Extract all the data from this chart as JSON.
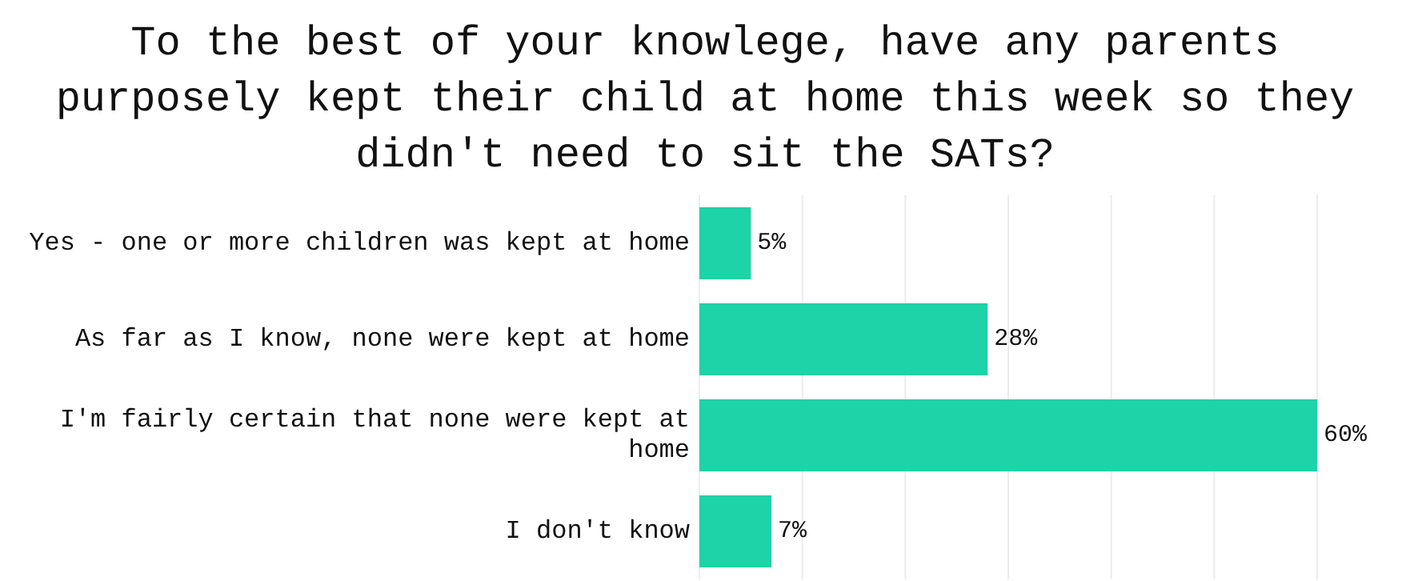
{
  "chart_data": {
    "type": "bar",
    "orientation": "horizontal",
    "title": "To the best of your knowlege, have any parents purposely kept their child at home this week so they didn't need to sit the SATs?",
    "categories": [
      "Yes - one or more children was kept at home",
      "As far as I know, none were kept at home",
      "I'm fairly certain that none were kept at home",
      "I don't know"
    ],
    "values": [
      5,
      28,
      60,
      7
    ],
    "value_labels": [
      "5%",
      "28%",
      "60%",
      "7%"
    ],
    "color": "#1ed3a7",
    "xlim": [
      0,
      60
    ],
    "xticks": [
      {
        "value": 0,
        "label": null
      },
      {
        "value": 10,
        "label": null
      },
      {
        "value": 20,
        "label": null
      },
      {
        "value": 30,
        "label": null
      },
      {
        "value": 40,
        "label": null
      },
      {
        "value": 50,
        "label": null
      },
      {
        "value": 60,
        "label": null
      }
    ],
    "tick_labels": "y",
    "grid": "x"
  }
}
